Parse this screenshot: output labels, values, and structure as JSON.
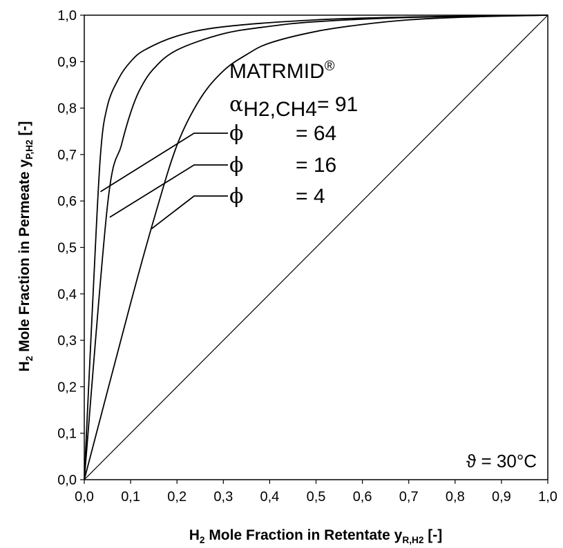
{
  "chart_data": {
    "type": "line",
    "xlabel": {
      "main": "H",
      "sub1": "2",
      "mid": " Mole Fraction in Retentate y",
      "sub2": "R,H2",
      "end": " [-]"
    },
    "ylabel": {
      "main": "H",
      "sub1": "2",
      "mid": " Mole Fraction in Permeate y",
      "sub2": "P,H2",
      "end": " [-]"
    },
    "xlim": [
      0,
      1
    ],
    "ylim": [
      0,
      1
    ],
    "x_ticks": [
      "0,0",
      "0,1",
      "0,2",
      "0,3",
      "0,4",
      "0,5",
      "0,6",
      "0,7",
      "0,8",
      "0,9",
      "1,0"
    ],
    "y_ticks": [
      "0,0",
      "0,1",
      "0,2",
      "0,3",
      "0,4",
      "0,5",
      "0,6",
      "0,7",
      "0,8",
      "0,9",
      "1,0"
    ],
    "grid": false,
    "series": [
      {
        "label_value": "64",
        "x": [
          0,
          0.02,
          0.035,
          0.05,
          0.075,
          0.1,
          0.13,
          0.2,
          0.3,
          0.5,
          0.7,
          0.9,
          1.0
        ],
        "y": [
          0,
          0.42,
          0.7,
          0.805,
          0.865,
          0.9,
          0.925,
          0.955,
          0.975,
          0.99,
          0.996,
          0.999,
          1.0
        ]
      },
      {
        "label_value": "16",
        "x": [
          0,
          0.05,
          0.08,
          0.1,
          0.12,
          0.15,
          0.2,
          0.3,
          0.4,
          0.5,
          0.7,
          1.0
        ],
        "y": [
          0,
          0.59,
          0.72,
          0.79,
          0.84,
          0.885,
          0.925,
          0.96,
          0.976,
          0.986,
          0.995,
          1.0
        ]
      },
      {
        "label_value": "4",
        "x": [
          0,
          0.1,
          0.15,
          0.2,
          0.25,
          0.3,
          0.35,
          0.4,
          0.5,
          0.6,
          0.7,
          0.8,
          0.9,
          1.0
        ],
        "y": [
          0,
          0.38,
          0.56,
          0.72,
          0.82,
          0.88,
          0.915,
          0.94,
          0.965,
          0.98,
          0.99,
          0.995,
          0.998,
          1.0
        ]
      },
      {
        "label_value": "",
        "x": [
          0,
          1
        ],
        "y": [
          0,
          1
        ]
      }
    ],
    "annotations": {
      "material": "MATRMID",
      "material_mark": "®",
      "alpha_symbol": "α",
      "alpha_sub": "H2,CH4",
      "alpha_value": "= 91",
      "phi_symbol": "ϕ",
      "phi_labels": [
        {
          "value": "= 64",
          "leader_end": [
            0.035,
            0.62
          ]
        },
        {
          "value": "= 16",
          "leader_end": [
            0.055,
            0.565
          ]
        },
        {
          "value": "= 4",
          "leader_end": [
            0.145,
            0.54
          ]
        }
      ],
      "temperature": "ϑ = 30°C"
    }
  }
}
